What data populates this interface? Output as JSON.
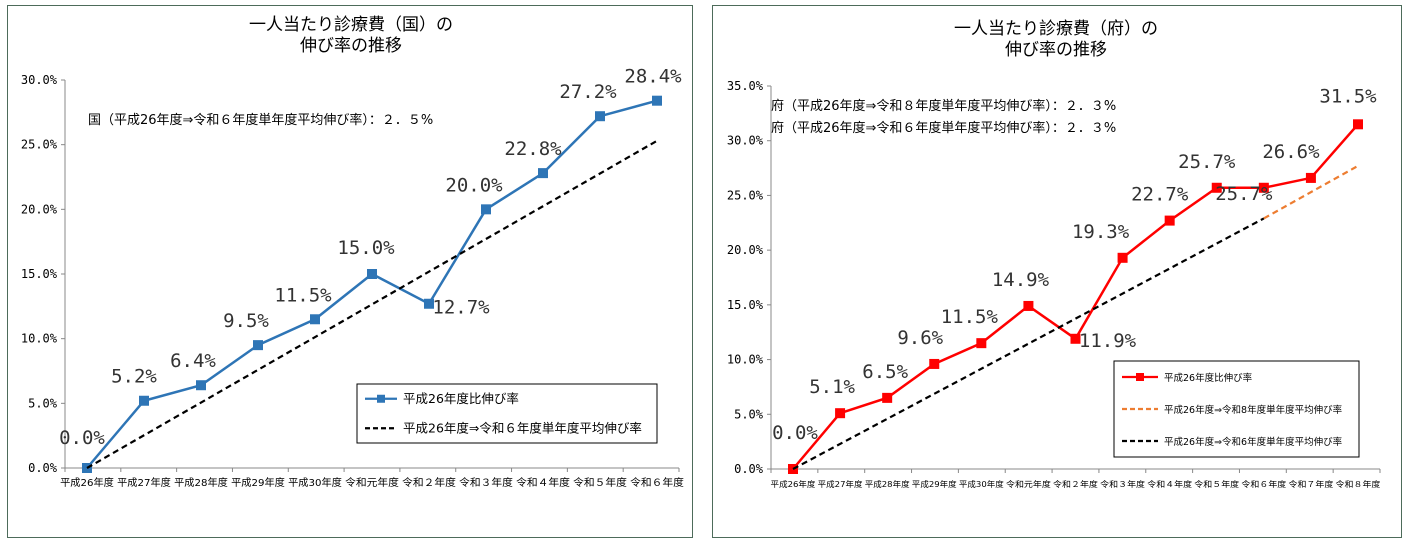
{
  "chart_data": [
    {
      "type": "line",
      "title_lines": [
        "一人当たり診療費（国）の",
        "伸び率の推移"
      ],
      "annotations": [
        "国（平成26年度⇒令和６年度単年度平均伸び率）：２．５%"
      ],
      "categories": [
        "平成26年度",
        "平成27年度",
        "平成28年度",
        "平成29年度",
        "平成30年度",
        "令和元年度",
        "令和２年度",
        "令和３年度",
        "令和４年度",
        "令和５年度",
        "令和６年度"
      ],
      "yticks": [
        "0.0%",
        "5.0%",
        "10.0%",
        "15.0%",
        "20.0%",
        "25.0%",
        "30.0%"
      ],
      "ylim": [
        0,
        30
      ],
      "grid": false,
      "legend_position": "right",
      "series": [
        {
          "name": "平成26年度比伸び率",
          "color": "#2e75b6",
          "marker": "square",
          "values": [
            0.0,
            5.2,
            6.4,
            9.5,
            11.5,
            15.0,
            12.7,
            20.0,
            22.8,
            27.2,
            28.4
          ],
          "labels": [
            "0.0%",
            "5.2%",
            "6.4%",
            "9.5%",
            "11.5%",
            "15.0%",
            "12.7%",
            "20.0%",
            "22.8%",
            "27.2%",
            "28.4%"
          ]
        },
        {
          "name": "平成26年度⇒令和６年度単年度平均伸び率",
          "color": "#000000",
          "dash": true,
          "x_start": 0,
          "x_end": 10,
          "values_endpoints": [
            0.0,
            25.3
          ]
        }
      ]
    },
    {
      "type": "line",
      "title_lines": [
        "一人当たり診療費（府）の",
        "伸び率の推移"
      ],
      "annotations": [
        "府（平成26年度⇒令和８年度単年度平均伸び率）：２．３%",
        "府（平成26年度⇒令和６年度単年度平均伸び率）：２．３%"
      ],
      "categories": [
        "平成26年度",
        "平成27年度",
        "平成28年度",
        "平成29年度",
        "平成30年度",
        "令和元年度",
        "令和２年度",
        "令和３年度",
        "令和４年度",
        "令和５年度",
        "令和６年度",
        "令和７年度",
        "令和８年度"
      ],
      "yticks": [
        "0.0%",
        "5.0%",
        "10.0%",
        "15.0%",
        "20.0%",
        "25.0%",
        "30.0%",
        "35.0%"
      ],
      "ylim": [
        0,
        35
      ],
      "grid": false,
      "legend_position": "right",
      "series": [
        {
          "name": "平成26年度比伸び率",
          "color": "#ff0000",
          "marker": "square",
          "values": [
            0.0,
            5.1,
            6.5,
            9.6,
            11.5,
            14.9,
            11.9,
            19.3,
            22.7,
            25.7,
            25.7,
            26.6,
            31.5
          ],
          "labels": [
            "0.0%",
            "5.1%",
            "6.5%",
            "9.6%",
            "11.5%",
            "14.9%",
            "11.9%",
            "19.3%",
            "22.7%",
            "25.7%",
            "25.7%",
            "26.6%",
            "31.5%"
          ]
        },
        {
          "name": "平成26年度⇒令和8年度単年度平均伸び率",
          "color": "#ed7d31",
          "dash": true,
          "x_start": 10,
          "x_end": 12,
          "values_endpoints": [
            22.9,
            27.7
          ]
        },
        {
          "name": "平成26年度⇒令和6年度単年度平均伸び率",
          "color": "#000000",
          "dash": true,
          "x_start": 0,
          "x_end": 10,
          "values_endpoints": [
            0.0,
            22.9
          ]
        }
      ]
    }
  ]
}
